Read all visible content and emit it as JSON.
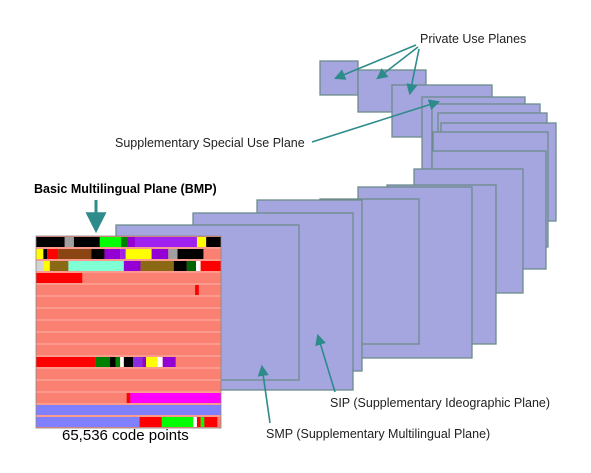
{
  "labels": {
    "private_use_planes": "Private Use Planes",
    "supplementary_special_use_plane": "Supplementary Special Use Plane",
    "bmp": "Basic Multilingual Plane (BMP)",
    "sip": "SIP (Supplementary Ideographic Plane)",
    "smp": "SMP (Supplementary Multilingual Plane)",
    "code_points": "65,536 code points"
  },
  "colors": {
    "plane_fill": "#A5A5DF",
    "plane_border": "#6C8C8C",
    "arrow": "#2E8B8B",
    "bmp_default": "#FA8072"
  },
  "bmp_rows": [
    [
      [
        "#000000",
        0.155
      ],
      [
        "#A0A0A0",
        0.05
      ],
      [
        "#000000",
        0.14
      ],
      [
        "#00FF00",
        0.115
      ],
      [
        "#008000",
        0.035
      ],
      [
        "#9400D3",
        0.04
      ],
      [
        "#A020F0",
        0.335
      ],
      [
        "#FFFF00",
        0.05
      ],
      [
        "#000000",
        0.08
      ]
    ],
    [
      [
        "#FFFF00",
        0.04
      ],
      [
        "#000000",
        0.02
      ],
      [
        "#FF0000",
        0.06
      ],
      [
        "#8B4513",
        0.18
      ],
      [
        "#000000",
        0.07
      ],
      [
        "#9400D3",
        0.085
      ],
      [
        "#A020F0",
        0.03
      ],
      [
        "#FFFF00",
        0.14
      ],
      [
        "#9400D3",
        0.09
      ],
      [
        "#A0A0A0",
        0.05
      ],
      [
        "#000000",
        0.14
      ]
    ],
    [
      [
        "#D3D3D3",
        0.04
      ],
      [
        "#FFFF00",
        0.035
      ],
      [
        "#8B6914",
        0.1
      ],
      [
        "#7FFFD4",
        0.3
      ],
      [
        "#9400D3",
        0.09
      ],
      [
        "#8B6914",
        0.18
      ],
      [
        "#000000",
        0.07
      ],
      [
        "#006400",
        0.05
      ],
      [
        "#FFFFFF",
        0.025
      ],
      [
        "#FF0000",
        0.11
      ]
    ],
    [
      [
        "#FF0000",
        0.25
      ]
    ],
    [
      [
        "#FA8072",
        0.86
      ],
      [
        "#FF0000",
        0.02
      ]
    ],
    [],
    [],
    [],
    [],
    [],
    [
      [
        "#FF0000",
        0.32
      ],
      [
        "#008000",
        0.08
      ],
      [
        "#000000",
        0.03
      ],
      [
        "#008000",
        0.025
      ],
      [
        "#FFFFFF",
        0.02
      ],
      [
        "#000000",
        0.05
      ],
      [
        "#8A2BE2",
        0.05
      ],
      [
        "#9400D3",
        0.02
      ],
      [
        "#FFFF00",
        0.06
      ],
      [
        "#FFFFFF",
        0.03
      ],
      [
        "#9400D3",
        0.07
      ]
    ],
    [],
    [],
    [
      [
        "#FA8072",
        0.49
      ],
      [
        "#FF0000",
        0.02
      ],
      [
        "#FF00FF",
        0.49
      ]
    ],
    [
      [
        "#8080FF",
        1.0
      ]
    ],
    [
      [
        "#8080FF",
        0.56
      ],
      [
        "#FF0000",
        0.12
      ],
      [
        "#00FF00",
        0.17
      ],
      [
        "#FFFFFF",
        0.02
      ],
      [
        "#FF0000",
        0.02
      ],
      [
        "#00FF00",
        0.02
      ],
      [
        "#FF0000",
        0.07
      ]
    ]
  ]
}
